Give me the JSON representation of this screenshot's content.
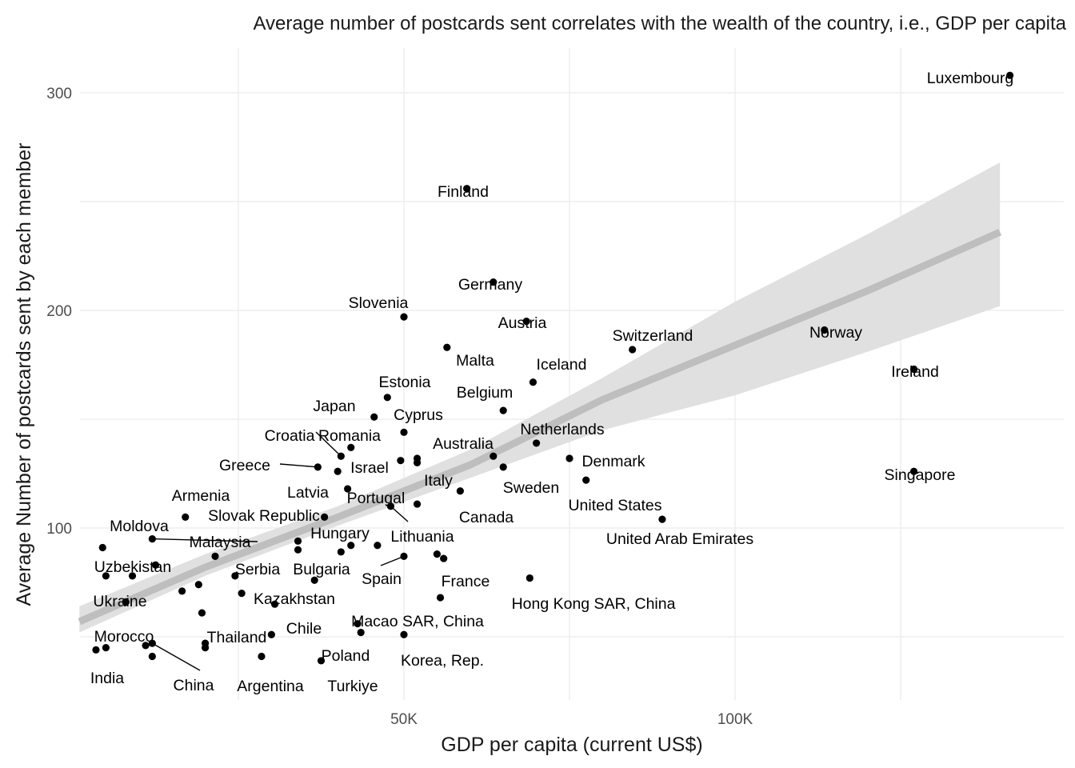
{
  "chart_data": {
    "type": "scatter",
    "title": "Average number of postcards sent correlates with the wealth of the country, i.e., GDP per capita",
    "xlabel": "GDP per capita (current US$)",
    "ylabel": "Average Number of postcards sent by each member",
    "xlim": [
      0,
      145000
    ],
    "ylim": [
      30,
      320
    ],
    "x_ticks": [
      {
        "value": 50000,
        "label": "50K"
      },
      {
        "value": 100000,
        "label": "100K"
      }
    ],
    "y_ticks": [
      {
        "value": 100,
        "label": "100"
      },
      {
        "value": 200,
        "label": "200"
      },
      {
        "value": 300,
        "label": "300"
      }
    ],
    "grid": true,
    "legend": "none",
    "colors": {
      "points": "#000000",
      "trend_line": "#bebebe",
      "confidence_band": "#e0e0e0",
      "grid": "#ebebeb"
    },
    "trend": {
      "method": "linear",
      "x": [
        1000,
        20000,
        40000,
        60000,
        80000,
        100000,
        120000,
        140000
      ],
      "y": [
        57,
        82,
        105,
        129,
        159,
        184,
        209,
        236
      ],
      "lower": [
        52,
        78,
        101,
        123,
        145,
        161,
        181,
        202
      ],
      "upper": [
        64,
        88,
        110,
        136,
        169,
        204,
        235,
        268
      ]
    },
    "points": [
      {
        "x": 141500,
        "y": 308,
        "label": "Luxembourg"
      },
      {
        "x": 59500,
        "y": 256,
        "label": "Finland"
      },
      {
        "x": 63500,
        "y": 213,
        "label": "Germany"
      },
      {
        "x": 50000,
        "y": 197,
        "label": "Slovenia"
      },
      {
        "x": 68500,
        "y": 195,
        "label": "Austria"
      },
      {
        "x": 113500,
        "y": 191,
        "label": "Norway"
      },
      {
        "x": 56500,
        "y": 183,
        "label": "Malta"
      },
      {
        "x": 84500,
        "y": 182,
        "label": "Switzerland"
      },
      {
        "x": 127000,
        "y": 173,
        "label": "Ireland"
      },
      {
        "x": 69500,
        "y": 167,
        "label": "Iceland"
      },
      {
        "x": 47500,
        "y": 160,
        "label": "Estonia"
      },
      {
        "x": 65000,
        "y": 154,
        "label": "Belgium"
      },
      {
        "x": 45500,
        "y": 151,
        "label": "Japan"
      },
      {
        "x": 50000,
        "y": 144,
        "label": "Cyprus"
      },
      {
        "x": 70000,
        "y": 139,
        "label": "Netherlands"
      },
      {
        "x": 42000,
        "y": 137,
        "label": "Romania"
      },
      {
        "x": 40500,
        "y": 133,
        "label": "Croatia"
      },
      {
        "x": 63500,
        "y": 133,
        "label": "Australia"
      },
      {
        "x": 75000,
        "y": 132,
        "label": "Denmark"
      },
      {
        "x": 52000,
        "y": 132,
        "label": ""
      },
      {
        "x": 49500,
        "y": 131,
        "label": ""
      },
      {
        "x": 52000,
        "y": 130,
        "label": ""
      },
      {
        "x": 37000,
        "y": 128,
        "label": "Greece"
      },
      {
        "x": 65000,
        "y": 128,
        "label": "Sweden"
      },
      {
        "x": 40000,
        "y": 126,
        "label": "Israel"
      },
      {
        "x": 127000,
        "y": 126,
        "label": "Singapore"
      },
      {
        "x": 77500,
        "y": 122,
        "label": "United States"
      },
      {
        "x": 41500,
        "y": 118,
        "label": "Latvia"
      },
      {
        "x": 58500,
        "y": 117,
        "label": "Italy"
      },
      {
        "x": 48000,
        "y": 110,
        "label": "Portugal"
      },
      {
        "x": 17000,
        "y": 105,
        "label": "Armenia"
      },
      {
        "x": 38000,
        "y": 105,
        "label": "Slovak Republic"
      },
      {
        "x": 89000,
        "y": 104,
        "label": "United Arab Emirates"
      },
      {
        "x": 12000,
        "y": 95,
        "label": "Malaysia"
      },
      {
        "x": 34000,
        "y": 94,
        "label": ""
      },
      {
        "x": 46000,
        "y": 92,
        "label": "Hungary"
      },
      {
        "x": 42000,
        "y": 92,
        "label": ""
      },
      {
        "x": 4500,
        "y": 91,
        "label": "Moldova"
      },
      {
        "x": 34000,
        "y": 90,
        "label": ""
      },
      {
        "x": 40500,
        "y": 89,
        "label": "Lithuania"
      },
      {
        "x": 55000,
        "y": 88,
        "label": ""
      },
      {
        "x": 21500,
        "y": 87,
        "label": ""
      },
      {
        "x": 50000,
        "y": 87,
        "label": "Spain"
      },
      {
        "x": 56000,
        "y": 86,
        "label": "France"
      },
      {
        "x": 12500,
        "y": 83,
        "label": "Uzbekistan"
      },
      {
        "x": 5000,
        "y": 78,
        "label": ""
      },
      {
        "x": 9000,
        "y": 78,
        "label": ""
      },
      {
        "x": 24500,
        "y": 78,
        "label": "Serbia"
      },
      {
        "x": 69000,
        "y": 77,
        "label": "Hong Kong SAR, China"
      },
      {
        "x": 36500,
        "y": 76,
        "label": "Bulgaria"
      },
      {
        "x": 19000,
        "y": 74,
        "label": ""
      },
      {
        "x": 16500,
        "y": 71,
        "label": ""
      },
      {
        "x": 25500,
        "y": 70,
        "label": "Kazakhstan"
      },
      {
        "x": 55500,
        "y": 68,
        "label": "Macao SAR, China"
      },
      {
        "x": 8000,
        "y": 66,
        "label": "Ukraine"
      },
      {
        "x": 30500,
        "y": 65,
        "label": ""
      },
      {
        "x": 19500,
        "y": 61,
        "label": "Thailand"
      },
      {
        "x": 43000,
        "y": 56,
        "label": "Chile"
      },
      {
        "x": 30000,
        "y": 51,
        "label": ""
      },
      {
        "x": 50000,
        "y": 51,
        "label": "Korea, Rep."
      },
      {
        "x": 12000,
        "y": 47,
        "label": "China"
      },
      {
        "x": 20000,
        "y": 47,
        "label": ""
      },
      {
        "x": 11000,
        "y": 46,
        "label": ""
      },
      {
        "x": 5000,
        "y": 45,
        "label": "Morocco"
      },
      {
        "x": 20000,
        "y": 45,
        "label": ""
      },
      {
        "x": 3500,
        "y": 44,
        "label": "India"
      },
      {
        "x": 28500,
        "y": 41,
        "label": "Argentina"
      },
      {
        "x": 12000,
        "y": 41,
        "label": ""
      },
      {
        "x": 37500,
        "y": 39,
        "label": "Turkiye"
      },
      {
        "x": 43500,
        "y": 52,
        "label": "Poland"
      },
      {
        "x": 52000,
        "y": 111,
        "label": "Canada"
      }
    ]
  }
}
